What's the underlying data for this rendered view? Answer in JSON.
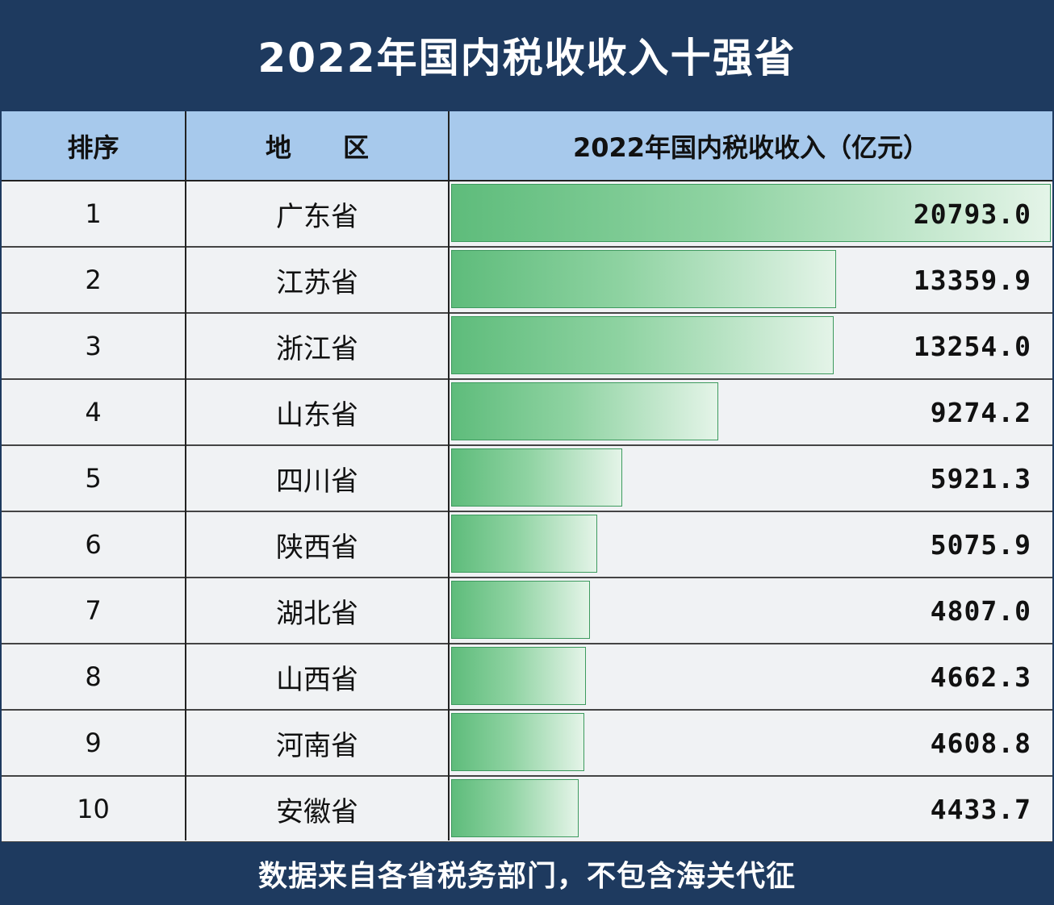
{
  "title": "2022年国内税收收入十强省",
  "headers": {
    "rank": "排序",
    "region": "地　　区",
    "value": "2022年国内税收收入（亿元）"
  },
  "footer": "数据来自各省税务部门，不包含海关代征",
  "colors": {
    "header_bg": "#1e3a5f",
    "column_header_bg": "#a7c9ec",
    "bar_green": "#5ebc7b"
  },
  "chart_data": {
    "type": "table",
    "title": "2022年国内税收收入十强省",
    "columns": [
      "排序",
      "地　　区",
      "2022年国内税收收入（亿元）"
    ],
    "rows": [
      {
        "rank": "1",
        "region": "广东省",
        "value": 20793.0,
        "label": "20793.0"
      },
      {
        "rank": "2",
        "region": "江苏省",
        "value": 13359.9,
        "label": "13359.9"
      },
      {
        "rank": "3",
        "region": "浙江省",
        "value": 13254.0,
        "label": "13254.0"
      },
      {
        "rank": "4",
        "region": "山东省",
        "value": 9274.2,
        "label": "9274.2"
      },
      {
        "rank": "5",
        "region": "四川省",
        "value": 5921.3,
        "label": "5921.3"
      },
      {
        "rank": "6",
        "region": "陕西省",
        "value": 5075.9,
        "label": "5075.9"
      },
      {
        "rank": "7",
        "region": "湖北省",
        "value": 4807.0,
        "label": "4807.0"
      },
      {
        "rank": "8",
        "region": "山西省",
        "value": 4662.3,
        "label": "4662.3"
      },
      {
        "rank": "9",
        "region": "河南省",
        "value": 4608.8,
        "label": "4608.8"
      },
      {
        "rank": "10",
        "region": "安徽省",
        "value": 4433.7,
        "label": "4433.7"
      }
    ]
  }
}
